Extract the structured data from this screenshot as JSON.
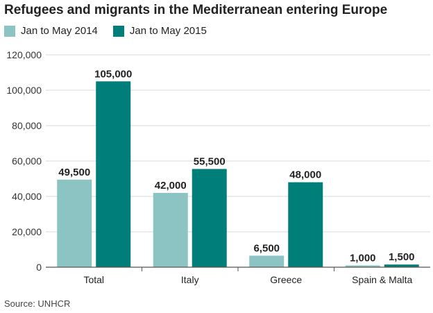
{
  "chart_data": {
    "type": "bar",
    "title": "Refugees and migrants in the Mediterranean entering Europe",
    "categories": [
      "Total",
      "Italy",
      "Greece",
      "Spain & Malta"
    ],
    "series": [
      {
        "name": "Jan to May 2014",
        "color": "#8cc3c3",
        "values": [
          49500,
          42000,
          6500,
          1000
        ],
        "labels": [
          "49,500",
          "42,000",
          "6,500",
          "1,000"
        ]
      },
      {
        "name": "Jan to May 2015",
        "color": "#007f7a",
        "values": [
          105000,
          55500,
          48000,
          1500
        ],
        "labels": [
          "105,000",
          "55,500",
          "48,000",
          "1,500"
        ]
      }
    ],
    "ylim": [
      0,
      120000
    ],
    "yticks": [
      0,
      20000,
      40000,
      60000,
      80000,
      100000,
      120000
    ],
    "ytick_labels": [
      "0",
      "20,000",
      "40,000",
      "60,000",
      "80,000",
      "100,000",
      "120,000"
    ],
    "grid": true,
    "legend_position": "top-left",
    "source": "Source: UNHCR"
  }
}
